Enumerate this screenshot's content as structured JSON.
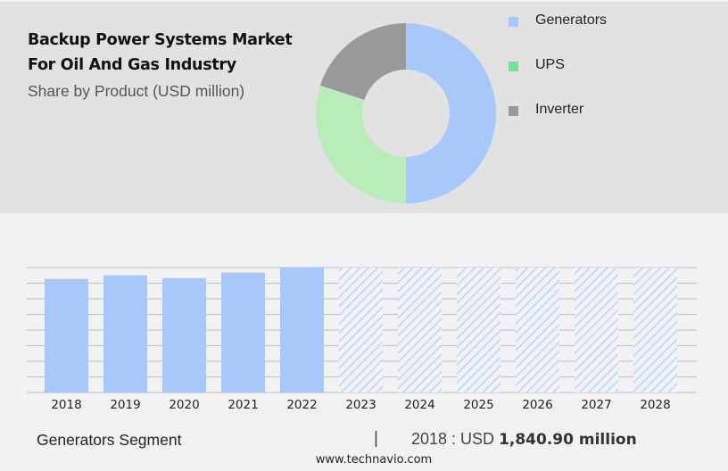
{
  "header": {
    "title_line1": "Backup Power Systems Market",
    "title_line2": "For Oil And Gas Industry",
    "subtitle": "Share by Product (USD million)"
  },
  "legend": [
    {
      "label": "Generators",
      "color": "#a8c8fc"
    },
    {
      "label": "UPS",
      "color": "#76e09a"
    },
    {
      "label": "Inverter",
      "color": "#999999"
    }
  ],
  "footer": {
    "segment": "Generators Segment",
    "separator": "|",
    "year_prefix": "2018 : USD ",
    "value": "1,840.90 million",
    "url": "www.technavio.com"
  },
  "chart_data": [
    {
      "type": "pie",
      "title": "Backup Power Systems Market For Oil And Gas Industry",
      "subtitle": "Share by Product (USD million)",
      "donut": true,
      "categories": [
        "Generators",
        "UPS",
        "Inverter"
      ],
      "values": [
        50,
        30,
        20
      ],
      "colors": [
        "#a8c8fc",
        "#b8ecb8",
        "#999999"
      ],
      "legend_position": "right"
    },
    {
      "type": "bar",
      "title": "Generators Segment",
      "categories": [
        "2018",
        "2019",
        "2020",
        "2021",
        "2022",
        "2023",
        "2024",
        "2025",
        "2026",
        "2027",
        "2028"
      ],
      "values": [
        1840.9,
        1902,
        1855,
        1945,
        2025,
        2025,
        2025,
        2025,
        2025,
        2025,
        2025
      ],
      "forecast_from": "2023",
      "forecast_style": "hatched",
      "xlabel": "",
      "ylabel": "",
      "ylim": [
        0,
        2025
      ],
      "grid": true,
      "color": "#a8c8fc",
      "annotation": "2018 : USD 1,840.90 million"
    }
  ]
}
